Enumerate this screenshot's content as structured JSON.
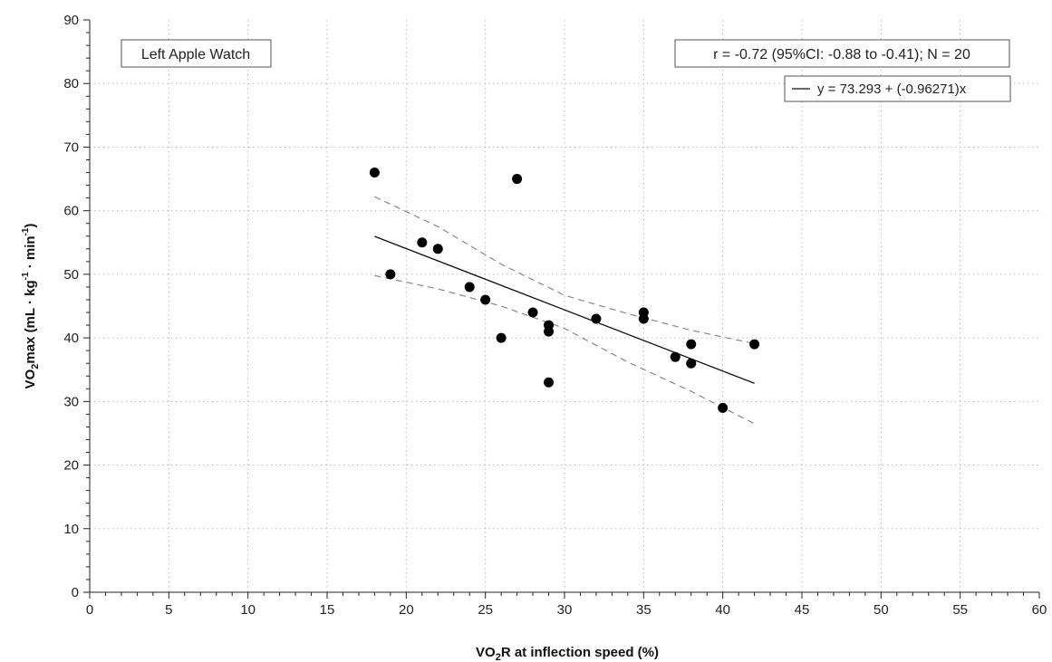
{
  "chart_data": {
    "type": "scatter",
    "title": "",
    "panel_label": "Left Apple Watch",
    "stats_text": "r = -0.72 (95%CI: -0.88 to -0.41); N = 20",
    "xlabel": {
      "prefix": "VO",
      "sub": "2",
      "suffix": "R at inflection speed (%)"
    },
    "ylabel": {
      "prefix": "VO",
      "sub": "2",
      "middle": "max (mL · kg",
      "sup1": "-1",
      "middle2": " · min",
      "sup2": "-1",
      "suffix": ")"
    },
    "xlim": [
      0,
      60
    ],
    "ylim": [
      0,
      90
    ],
    "xticks": [
      0,
      5,
      10,
      15,
      20,
      25,
      30,
      35,
      40,
      45,
      50,
      55,
      60
    ],
    "yticks": [
      0,
      10,
      20,
      30,
      40,
      50,
      60,
      70,
      80,
      90
    ],
    "grid": true,
    "points": [
      {
        "x": 18,
        "y": 66
      },
      {
        "x": 19,
        "y": 50
      },
      {
        "x": 21,
        "y": 55
      },
      {
        "x": 22,
        "y": 54
      },
      {
        "x": 24,
        "y": 48
      },
      {
        "x": 25,
        "y": 46
      },
      {
        "x": 26,
        "y": 40
      },
      {
        "x": 27,
        "y": 65
      },
      {
        "x": 28,
        "y": 44
      },
      {
        "x": 29,
        "y": 42
      },
      {
        "x": 29,
        "y": 41
      },
      {
        "x": 29,
        "y": 33
      },
      {
        "x": 32,
        "y": 43
      },
      {
        "x": 35,
        "y": 44
      },
      {
        "x": 35,
        "y": 43
      },
      {
        "x": 37,
        "y": 37
      },
      {
        "x": 38,
        "y": 39
      },
      {
        "x": 38,
        "y": 36
      },
      {
        "x": 40,
        "y": 29
      },
      {
        "x": 42,
        "y": 39
      }
    ],
    "regression": {
      "label": "y = 73.293 + (-0.96271)x",
      "intercept": 73.293,
      "slope": -0.96271,
      "x_range": [
        18,
        42
      ]
    },
    "ci_upper": [
      [
        18,
        62.2
      ],
      [
        22,
        57.5
      ],
      [
        26,
        51.6
      ],
      [
        30,
        46.7
      ],
      [
        34,
        43.8
      ],
      [
        38,
        41.2
      ],
      [
        42,
        39.1
      ]
    ],
    "ci_lower": [
      [
        18,
        49.8
      ],
      [
        22,
        47.7
      ],
      [
        26,
        45.0
      ],
      [
        30,
        41.5
      ],
      [
        34,
        36.2
      ],
      [
        38,
        31.6
      ],
      [
        42,
        26.5
      ]
    ],
    "legend_position": "top-right"
  }
}
